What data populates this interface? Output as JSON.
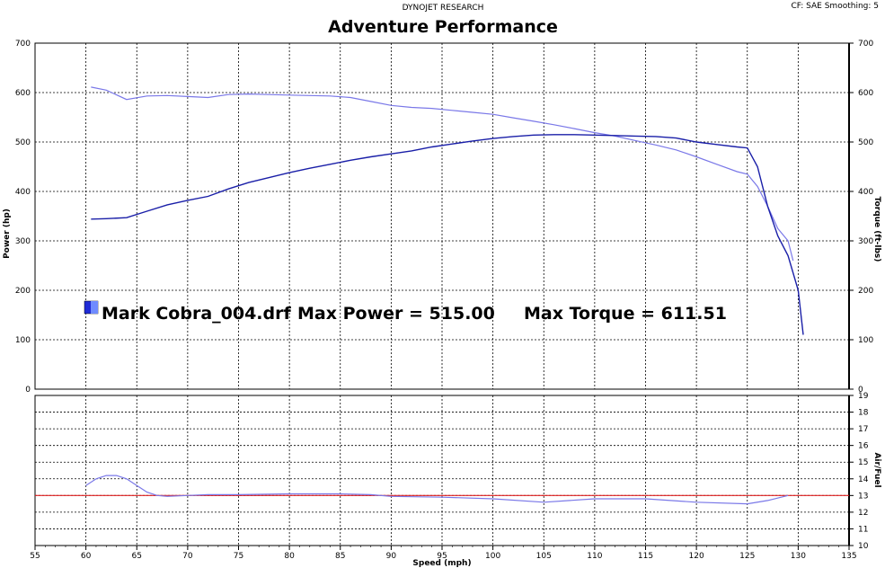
{
  "header": {
    "source": "DYNOJET RESEARCH",
    "settings": "CF: SAE  Smoothing: 5",
    "title": "Adventure Performance"
  },
  "legend": {
    "file": "Mark Cobra_004.drf",
    "max_power_text": "Max Power = 515.00",
    "max_torque_text": "Max Torque = 611.51",
    "swatch_color": "#1f2bd6"
  },
  "colors": {
    "power": "#1a1fa8",
    "torque": "#7a78e8",
    "afr": "#7a78e8",
    "afr_target": "#e02020"
  },
  "chart_data": [
    {
      "type": "line",
      "title": "Adventure Performance",
      "xlabel": "Speed (mph)",
      "ylabel_left": "Power (hp)",
      "ylabel_right": "Torque (ft-lbs)",
      "xlim": [
        55,
        135
      ],
      "ylim": [
        0,
        700
      ],
      "x_ticks": [
        55,
        60,
        65,
        70,
        75,
        80,
        85,
        90,
        95,
        100,
        105,
        110,
        115,
        120,
        125,
        130,
        135
      ],
      "y_ticks": [
        0,
        100,
        200,
        300,
        400,
        500,
        600,
        700
      ],
      "grid": true,
      "series": [
        {
          "name": "Power",
          "x": [
            60.5,
            62,
            64,
            66,
            68,
            70,
            72,
            74,
            76,
            78,
            80,
            82,
            84,
            86,
            88,
            90,
            92,
            94,
            96,
            98,
            100,
            102,
            104,
            106,
            108,
            110,
            112,
            114,
            116,
            118,
            120,
            122,
            124,
            125,
            126,
            127,
            128,
            129,
            130,
            130.5
          ],
          "y": [
            344,
            345,
            347,
            360,
            373,
            382,
            390,
            405,
            418,
            428,
            438,
            447,
            455,
            463,
            470,
            476,
            482,
            490,
            496,
            502,
            507,
            511,
            514,
            515,
            515,
            514,
            513,
            512,
            511,
            508,
            500,
            495,
            490,
            488,
            450,
            370,
            310,
            270,
            200,
            110
          ]
        },
        {
          "name": "Torque",
          "x": [
            60.5,
            62,
            64,
            66,
            68,
            70,
            72,
            74,
            76,
            78,
            80,
            82,
            84,
            86,
            88,
            90,
            92,
            94,
            96,
            98,
            100,
            102,
            104,
            106,
            108,
            110,
            112,
            114,
            116,
            118,
            120,
            122,
            124,
            125,
            126,
            127,
            128,
            129,
            129.5
          ],
          "y": [
            611,
            605,
            586,
            593,
            594,
            592,
            590,
            596,
            597,
            596,
            595,
            594,
            593,
            590,
            582,
            574,
            570,
            568,
            564,
            560,
            556,
            549,
            542,
            535,
            527,
            519,
            512,
            503,
            494,
            484,
            470,
            455,
            440,
            435,
            410,
            370,
            325,
            300,
            260
          ]
        }
      ]
    },
    {
      "type": "line",
      "xlabel": "Speed (mph)",
      "ylabel_right": "Air/Fuel",
      "xlim": [
        55,
        135
      ],
      "ylim": [
        10,
        19
      ],
      "x_ticks": [
        55,
        60,
        65,
        70,
        75,
        80,
        85,
        90,
        95,
        100,
        105,
        110,
        115,
        120,
        125,
        130,
        135
      ],
      "y_ticks": [
        10,
        11,
        12,
        13,
        14,
        15,
        16,
        17,
        18,
        19
      ],
      "grid": true,
      "series": [
        {
          "name": "Air/Fuel",
          "x": [
            60,
            61,
            62,
            63,
            64,
            65,
            66,
            67,
            68,
            70,
            72,
            75,
            80,
            85,
            88,
            90,
            95,
            100,
            105,
            110,
            115,
            120,
            125,
            127,
            129
          ],
          "y": [
            13.6,
            14.0,
            14.2,
            14.2,
            14.0,
            13.6,
            13.2,
            13.0,
            12.95,
            13.0,
            13.05,
            13.05,
            13.1,
            13.1,
            13.05,
            12.95,
            12.9,
            12.8,
            12.6,
            12.8,
            12.8,
            12.6,
            12.5,
            12.7,
            13.0
          ]
        },
        {
          "name": "Target",
          "x": [
            55,
            135
          ],
          "y": [
            13.0,
            13.0
          ]
        }
      ]
    }
  ]
}
